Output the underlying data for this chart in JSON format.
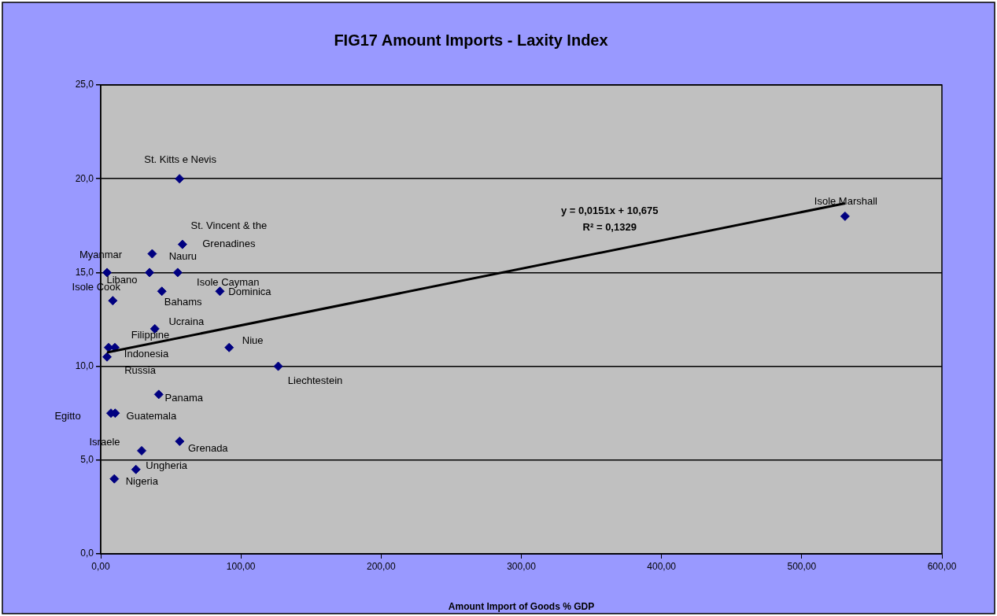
{
  "chart_data": {
    "type": "scatter",
    "title": "FIG17 Amount Imports - Laxity Index",
    "xlabel": "Amount Import of Goods % GDP",
    "xlim": [
      0,
      600
    ],
    "xticks": [
      {
        "value": 0,
        "label": "0,00"
      },
      {
        "value": 100,
        "label": "100,00"
      },
      {
        "value": 200,
        "label": "200,00"
      },
      {
        "value": 300,
        "label": "300,00"
      },
      {
        "value": 400,
        "label": "400,00"
      },
      {
        "value": 500,
        "label": "500,00"
      },
      {
        "value": 600,
        "label": "600,00"
      }
    ],
    "ylim": [
      0,
      25
    ],
    "yticks": [
      {
        "value": 0,
        "label": "0,0"
      },
      {
        "value": 5,
        "label": "5,0"
      },
      {
        "value": 10,
        "label": "10,0"
      },
      {
        "value": 15,
        "label": "15,0"
      },
      {
        "value": 20,
        "label": "20,0"
      },
      {
        "value": 25,
        "label": "25,0"
      }
    ],
    "grid": "y",
    "legend": false,
    "marker": "diamond",
    "series": [
      {
        "color": "#000080",
        "x": [
          56.2,
          530.9,
          58.3,
          36.7,
          4.5,
          34.8,
          54.9,
          43.6,
          85.0,
          8.6,
          38.6,
          10.1,
          5.6,
          4.5,
          91.6,
          126.6,
          41.4,
          7.3,
          10.3,
          56.3,
          29.2,
          25.1,
          9.7
        ],
        "values": [
          20.0,
          18.0,
          16.5,
          16.0,
          15.0,
          15.0,
          15.0,
          14.0,
          14.0,
          13.5,
          12.0,
          11.0,
          11.0,
          10.5,
          11.0,
          10.0,
          8.5,
          7.5,
          7.5,
          6.0,
          5.5,
          4.5,
          4.0
        ]
      },
      {
        "type": "line",
        "color": "#000000",
        "marker": "none",
        "line_style": "solid",
        "x": [
          4.5,
          530.9
        ],
        "values": [
          10.74,
          18.69
        ]
      }
    ],
    "annotations": [
      {
        "text": "St. Kitts e Nevis",
        "x": 56.2,
        "y": 20.0
      },
      {
        "text": "Isole Marshall",
        "x": 530.9,
        "y": 18.0
      },
      {
        "text": "St. Vincent & the\nGrenadines",
        "x": 58.3,
        "y": 16.5
      },
      {
        "text": "Nauru",
        "x": 36.7,
        "y": 16.0
      },
      {
        "text": "Myanmar",
        "x": 4.5,
        "y": 15.0
      },
      {
        "text": "Libano",
        "x": 34.8,
        "y": 15.0
      },
      {
        "text": "Isole Cayman",
        "x": 54.9,
        "y": 15.0
      },
      {
        "text": "Bahams",
        "x": 43.6,
        "y": 14.0
      },
      {
        "text": "Dominica",
        "x": 85.0,
        "y": 14.0
      },
      {
        "text": "Isole Cook",
        "x": 8.6,
        "y": 13.5
      },
      {
        "text": "Ucraina",
        "x": 38.6,
        "y": 12.0
      },
      {
        "text": "Filippine",
        "x": 10.1,
        "y": 11.0
      },
      {
        "text": "Indonesia",
        "x": 5.6,
        "y": 11.0
      },
      {
        "text": "Russia",
        "x": 4.5,
        "y": 10.5
      },
      {
        "text": "Niue",
        "x": 91.6,
        "y": 11.0
      },
      {
        "text": "Liechtestein",
        "x": 126.6,
        "y": 10.0
      },
      {
        "text": "Panama",
        "x": 41.4,
        "y": 8.5
      },
      {
        "text": "Egitto",
        "x": 7.3,
        "y": 7.5
      },
      {
        "text": "Guatemala",
        "x": 10.3,
        "y": 7.5
      },
      {
        "text": "Grenada",
        "x": 56.3,
        "y": 6.0
      },
      {
        "text": "Israele",
        "x": 29.2,
        "y": 5.5
      },
      {
        "text": "Ungheria",
        "x": 25.1,
        "y": 4.5
      },
      {
        "text": "Nigeria",
        "x": 9.7,
        "y": 4.0
      },
      "y = 0,0151x + 10,675",
      "R² = 0,1329"
    ]
  }
}
